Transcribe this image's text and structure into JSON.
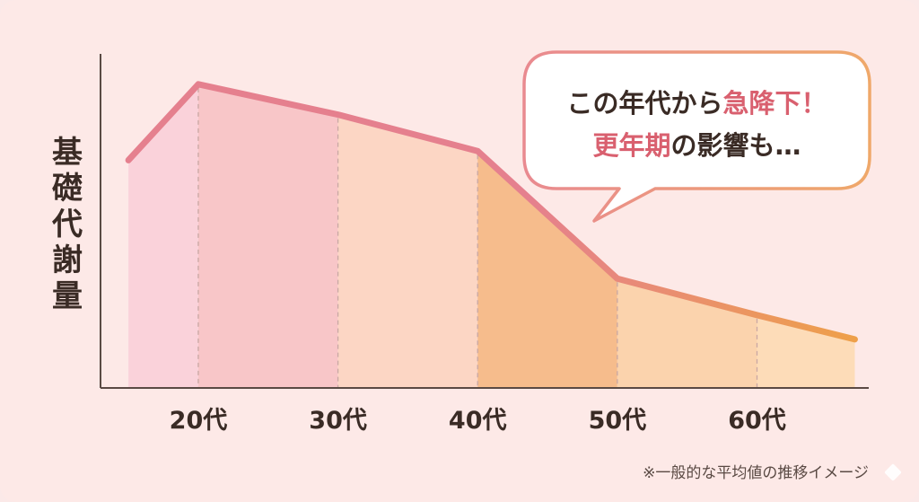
{
  "chart_data": {
    "type": "area",
    "ylabel": "基礎代謝量",
    "xlabel": "",
    "categories": [
      "20代",
      "30代",
      "40代",
      "50代",
      "60代"
    ],
    "points": [
      {
        "x": 15,
        "y": 75
      },
      {
        "x": 20,
        "y": 100
      },
      {
        "x": 30,
        "y": 90
      },
      {
        "x": 40,
        "y": 78
      },
      {
        "x": 50,
        "y": 36
      },
      {
        "x": 60,
        "y": 24
      },
      {
        "x": 67,
        "y": 16
      }
    ],
    "xlim": [
      13,
      68
    ],
    "ylim": [
      0,
      110
    ],
    "colors": {
      "line_start": "#e5808e",
      "line_end": "#eea04a",
      "fill_1": "#fad2da",
      "fill_2": "#f8c6c8",
      "fill_3": "#fcd6c4",
      "fill_4": "#f6bc8c",
      "fill_5": "#fbd3ad",
      "fill_6": "#fddcb8"
    },
    "annotation": {
      "line1_prefix": "この年代から",
      "line1_highlight": "急降下！",
      "line2_highlight": "更年期",
      "line2_suffix": "の影響も…",
      "highlight_color": "#d9606f"
    }
  },
  "note": "※一般的な平均値の推移イメージ"
}
